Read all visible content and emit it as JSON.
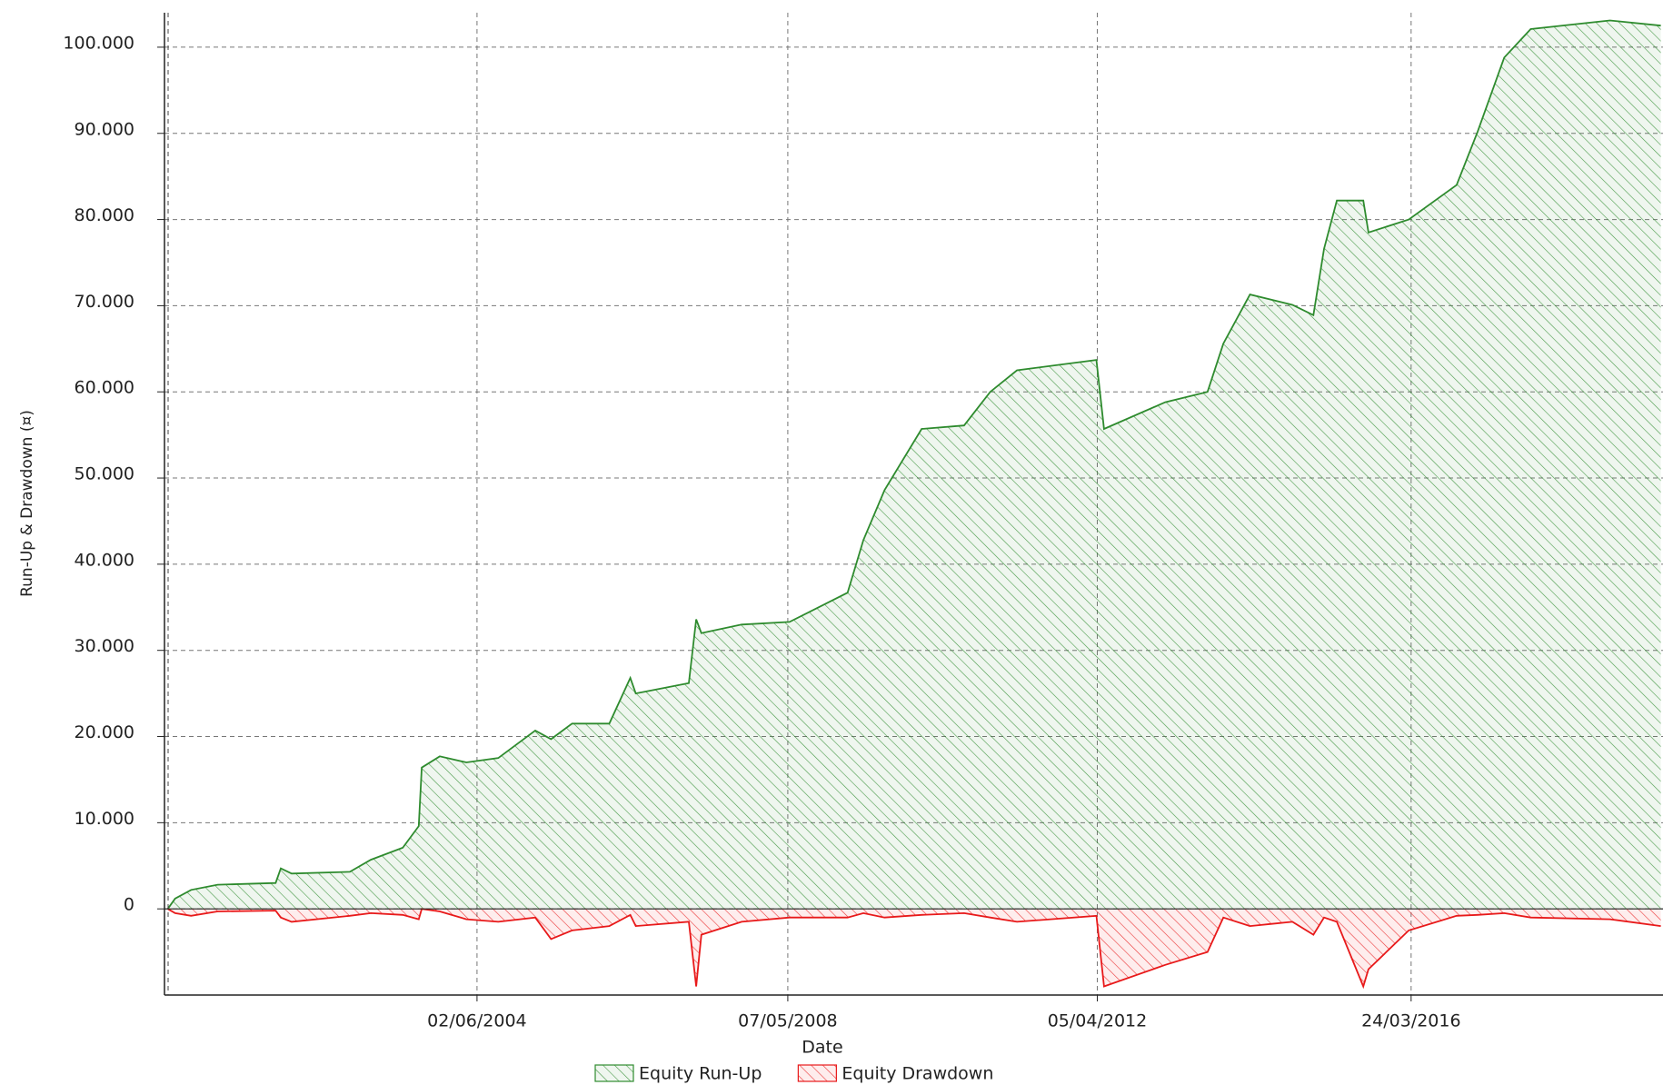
{
  "chart_data": {
    "type": "area",
    "x_label": "Date",
    "y_label": "Run-Up & Drawdown (¤)",
    "x": [
      "2000-07-05",
      "2000-08-08",
      "2000-10-21",
      "2001-02-20",
      "2001-11-15",
      "2001-12-09",
      "2002-01-28",
      "2002-10-24",
      "2003-01-29",
      "2003-06-25",
      "2003-09-07",
      "2003-09-21",
      "2003-12-13",
      "2004-04-14",
      "2004-09-08",
      "2005-02-26",
      "2005-05-10",
      "2005-08-15",
      "2006-02-03",
      "2006-05-11",
      "2006-06-05",
      "2007-02-05",
      "2007-03-11",
      "2007-04-04",
      "2007-10-07",
      "2008-05-15",
      "2009-02-07",
      "2009-04-21",
      "2009-07-28",
      "2010-01-15",
      "2010-07-30",
      "2010-11-28",
      "2011-03-31",
      "2012-04-01",
      "2012-05-06",
      "2013-02-13",
      "2013-08-27",
      "2013-11-08",
      "2014-03-11",
      "2014-09-23",
      "2014-12-29",
      "2015-02-16",
      "2015-04-16",
      "2015-08-16",
      "2015-09-09",
      "2016-03-13",
      "2016-10-20",
      "2017-01-25",
      "2017-05-28",
      "2017-09-27",
      "2018-09-28",
      "2019-05-21"
    ],
    "series": [
      {
        "name": "Equity Run-Up",
        "color": "#2e8b2e",
        "values": [
          0,
          1200,
          2200,
          2800,
          3000,
          4700,
          4100,
          4300,
          5700,
          7100,
          9600,
          16400,
          17700,
          17000,
          17500,
          20700,
          19700,
          21500,
          21500,
          26800,
          25000,
          26200,
          33600,
          32000,
          33000,
          33300,
          36700,
          42800,
          48600,
          55700,
          56100,
          60000,
          62500,
          63700,
          55700,
          58800,
          60000,
          65600,
          71300,
          70100,
          68900,
          76600,
          82200,
          82200,
          78500,
          80000,
          84000,
          90200,
          98800,
          102100,
          103100,
          102500
        ]
      },
      {
        "name": "Equity Drawdown",
        "color": "#e8191a",
        "values": [
          0,
          -500,
          -800,
          -300,
          -200,
          -1000,
          -1500,
          -800,
          -500,
          -700,
          -1200,
          0,
          -300,
          -1200,
          -1500,
          -1000,
          -3500,
          -2500,
          -2000,
          -700,
          -2000,
          -1500,
          -9000,
          -3000,
          -1500,
          -1000,
          -1000,
          -500,
          -1000,
          -700,
          -500,
          -1000,
          -1500,
          -800,
          -9000,
          -6500,
          -5000,
          -1000,
          -2000,
          -1500,
          -3000,
          -1000,
          -1500,
          -9000,
          -7000,
          -2500,
          -800,
          -700,
          -500,
          -1000,
          -1200,
          -2000
        ]
      }
    ],
    "xlim": [
      "2000-06-20",
      "2019-05-31"
    ],
    "xticks": [
      {
        "value": "2004-06-02",
        "label": "02/06/2004"
      },
      {
        "value": "2008-05-07",
        "label": "07/05/2008"
      },
      {
        "value": "2012-04-05",
        "label": "05/04/2012"
      },
      {
        "value": "2016-03-24",
        "label": "24/03/2016"
      }
    ],
    "ylim": [
      -10000,
      104000
    ],
    "yticks": [
      0,
      {
        "value": 10000,
        "label": "10.000"
      },
      {
        "value": 20000,
        "label": "20.000"
      },
      {
        "value": 30000,
        "label": "30.000"
      },
      {
        "value": 40000,
        "label": "40.000"
      },
      {
        "value": 50000,
        "label": "50.000"
      },
      {
        "value": 60000,
        "label": "60.000"
      },
      {
        "value": 70000,
        "label": "70.000"
      },
      {
        "value": 80000,
        "label": "80.000"
      },
      {
        "value": 90000,
        "label": "90.000"
      },
      {
        "value": 100000,
        "label": "100.000"
      }
    ],
    "grid": true,
    "legend": "bottom"
  }
}
